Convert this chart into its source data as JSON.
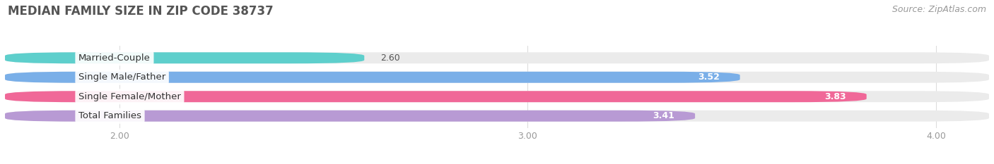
{
  "title": "MEDIAN FAMILY SIZE IN ZIP CODE 38737",
  "source": "Source: ZipAtlas.com",
  "categories": [
    "Married-Couple",
    "Single Male/Father",
    "Single Female/Mother",
    "Total Families"
  ],
  "values": [
    2.6,
    3.52,
    3.83,
    3.41
  ],
  "bar_colors": [
    "#5ecfcc",
    "#7aafe8",
    "#f06898",
    "#b89ad4"
  ],
  "bar_bg_colors": [
    "#ebebeb",
    "#ebebeb",
    "#ebebeb",
    "#ebebeb"
  ],
  "xlim": [
    1.72,
    4.13
  ],
  "xticks": [
    2.0,
    3.0,
    4.0
  ],
  "xtick_labels": [
    "2.00",
    "3.00",
    "4.00"
  ],
  "label_fontsize": 9.5,
  "title_fontsize": 12,
  "value_fontsize": 9,
  "source_fontsize": 9,
  "background_color": "#ffffff"
}
